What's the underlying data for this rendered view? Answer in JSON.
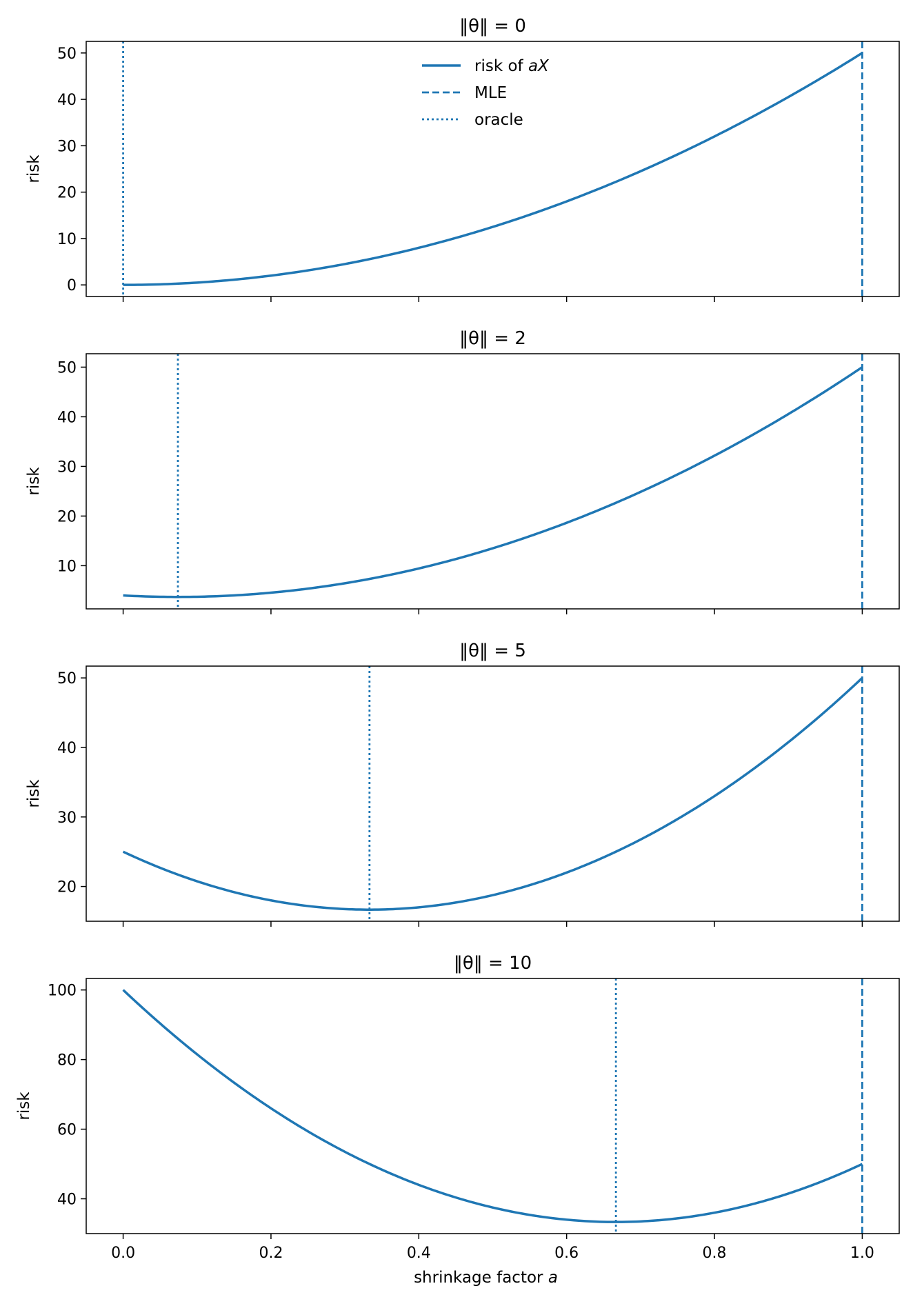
{
  "figure": {
    "xlabel": "shrinkage factor ",
    "xlabel_var": "a",
    "x_ticks": [
      "0.0",
      "0.2",
      "0.4",
      "0.6",
      "0.8",
      "1.0"
    ]
  },
  "legend": {
    "placement": "top-center of first panel",
    "entries": [
      {
        "label": "risk of ",
        "label_var": "aX",
        "style": "solid"
      },
      {
        "label": "MLE",
        "label_var": "",
        "style": "dashed"
      },
      {
        "label": "oracle",
        "label_var": "",
        "style": "dotted"
      }
    ]
  },
  "colors": {
    "line": "#1f77b4",
    "axes": "#000000",
    "background": "#ffffff"
  },
  "chart_data": [
    {
      "type": "line",
      "title_prefix": "‖θ‖ = ",
      "title_value": "0",
      "theta_norm": 0,
      "dimension": 50,
      "xlim": [
        -0.05,
        1.05
      ],
      "ylim": [
        -2.5,
        52.5
      ],
      "ylabel": "risk",
      "y_ticks": [
        0,
        10,
        20,
        30,
        40,
        50
      ],
      "series": [
        {
          "name": "risk of aX",
          "formula": "a^2*50 + (1-a)^2*0",
          "x_range": [
            0,
            1
          ]
        }
      ],
      "mle_x": 1.0,
      "oracle_x": 0.0,
      "show_legend": true,
      "show_xticklabels": false
    },
    {
      "type": "line",
      "title_prefix": "‖θ‖ = ",
      "title_value": "2",
      "theta_norm": 2,
      "dimension": 50,
      "xlim": [
        -0.05,
        1.05
      ],
      "ylim": [
        1.3,
        52.7
      ],
      "ylabel": "risk",
      "y_ticks": [
        10,
        20,
        30,
        40,
        50
      ],
      "series": [
        {
          "name": "risk of aX",
          "formula": "a^2*50 + (1-a)^2*4",
          "x_range": [
            0,
            1
          ]
        }
      ],
      "mle_x": 1.0,
      "oracle_x": 0.0741,
      "show_legend": false,
      "show_xticklabels": false
    },
    {
      "type": "line",
      "title_prefix": "‖θ‖ = ",
      "title_value": "5",
      "theta_norm": 5,
      "dimension": 50,
      "xlim": [
        -0.05,
        1.05
      ],
      "ylim": [
        15.0,
        51.7
      ],
      "ylabel": "risk",
      "y_ticks": [
        20,
        30,
        40,
        50
      ],
      "series": [
        {
          "name": "risk of aX",
          "formula": "a^2*50 + (1-a)^2*25",
          "x_range": [
            0,
            1
          ]
        }
      ],
      "mle_x": 1.0,
      "oracle_x": 0.3333,
      "show_legend": false,
      "show_xticklabels": false
    },
    {
      "type": "line",
      "title_prefix": "‖θ‖ = ",
      "title_value": "10",
      "theta_norm": 10,
      "dimension": 50,
      "xlim": [
        -0.05,
        1.05
      ],
      "ylim": [
        30.0,
        103.3
      ],
      "ylabel": "risk",
      "y_ticks": [
        40,
        60,
        80,
        100
      ],
      "series": [
        {
          "name": "risk of aX",
          "formula": "a^2*50 + (1-a)^2*100",
          "x_range": [
            0,
            1
          ]
        }
      ],
      "mle_x": 1.0,
      "oracle_x": 0.6667,
      "show_legend": false,
      "show_xticklabels": true
    }
  ]
}
